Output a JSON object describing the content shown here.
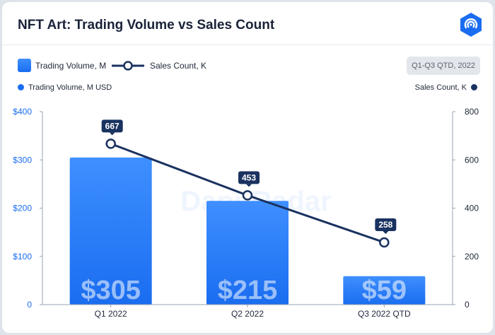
{
  "header": {
    "title": "NFT Art: Trading Volume vs Sales Count",
    "logo_icon": "dappradar-logo-icon"
  },
  "legend": {
    "bar_label": "Trading Volume, M",
    "line_label": "Sales Count, K"
  },
  "period_badge": "Q1-Q3 QTD, 2022",
  "watermark": "DappRadar",
  "colors": {
    "bar_top": "#3f8fff",
    "bar_bottom": "#1a6df0",
    "line": "#1a3260",
    "left_axis": "#1a6df0",
    "right_axis": "#222a3a"
  },
  "chart_data": {
    "type": "bar",
    "title": "NFT Art: Trading Volume vs Sales Count",
    "categories": [
      "Q1 2022",
      "Q2 2022",
      "Q3 2022 QTD"
    ],
    "y_left": {
      "label": "Trading Volume, M USD",
      "ylim": [
        0,
        400
      ],
      "ticks": [
        0,
        100,
        200,
        300,
        400
      ],
      "tick_labels": [
        "0",
        "$100",
        "$200",
        "$300",
        "$400"
      ]
    },
    "y_right": {
      "label": "Sales Count, K",
      "ylim": [
        0,
        800
      ],
      "ticks": [
        0,
        200,
        400,
        600,
        800
      ],
      "tick_labels": [
        "0",
        "200",
        "400",
        "600",
        "800"
      ]
    },
    "series": [
      {
        "name": "Trading Volume, M",
        "type": "bar",
        "axis": "left",
        "values": [
          305,
          215,
          59
        ],
        "value_labels": [
          "$305",
          "$215",
          "$59"
        ]
      },
      {
        "name": "Sales Count, K",
        "type": "line",
        "axis": "right",
        "values": [
          667,
          453,
          258
        ],
        "value_labels": [
          "667",
          "453",
          "258"
        ]
      }
    ],
    "grid": false,
    "legend_position": "top-left"
  }
}
